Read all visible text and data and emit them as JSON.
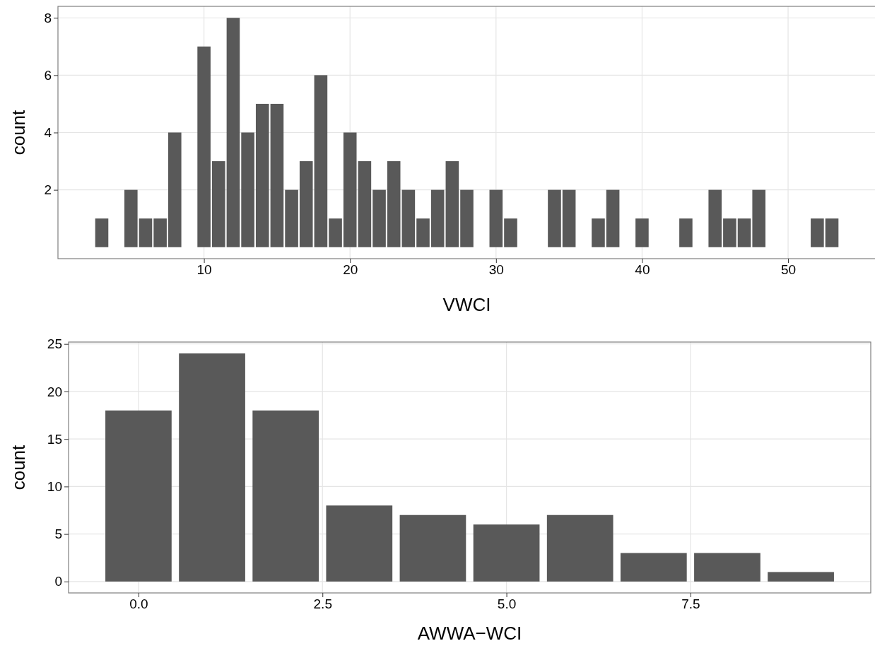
{
  "chart_data": [
    {
      "type": "bar",
      "xlabel": "VWCI",
      "ylabel": "count",
      "color": "#595959",
      "grid": true,
      "x": [
        3,
        5,
        6,
        7,
        8,
        10,
        11,
        12,
        13,
        14,
        15,
        16,
        17,
        18,
        19,
        20,
        21,
        22,
        23,
        24,
        25,
        26,
        27,
        28,
        30,
        31,
        34,
        35,
        37,
        38,
        40,
        43,
        45,
        46,
        47,
        48,
        52,
        53
      ],
      "values": [
        1,
        2,
        1,
        1,
        4,
        7,
        3,
        8,
        4,
        5,
        5,
        2,
        3,
        6,
        1,
        4,
        3,
        2,
        3,
        2,
        1,
        2,
        3,
        2,
        2,
        1,
        2,
        2,
        1,
        2,
        1,
        1,
        2,
        1,
        1,
        2,
        1,
        1
      ],
      "xlim": [
        0,
        56
      ],
      "xticks": [
        10,
        20,
        30,
        40,
        50
      ],
      "ylim": [
        -0.4,
        8.4
      ],
      "yticks": [
        2,
        4,
        6,
        8
      ]
    },
    {
      "type": "bar",
      "xlabel": "AWWA−WCI",
      "ylabel": "count",
      "color": "#595959",
      "grid": true,
      "x": [
        0,
        1,
        2,
        3,
        4,
        5,
        6,
        7,
        8,
        9
      ],
      "values": [
        18,
        24,
        18,
        8,
        7,
        6,
        7,
        3,
        3,
        1
      ],
      "xlim": [
        -0.95,
        9.95
      ],
      "xticks": [
        {
          "value": 0,
          "label": "0.0"
        },
        {
          "value": 2.5,
          "label": "2.5"
        },
        {
          "value": 5,
          "label": "5.0"
        },
        {
          "value": 7.5,
          "label": "7.5"
        }
      ],
      "ylim": [
        -1.2,
        25.2
      ],
      "yticks": [
        0,
        5,
        10,
        15,
        20,
        25
      ]
    }
  ]
}
